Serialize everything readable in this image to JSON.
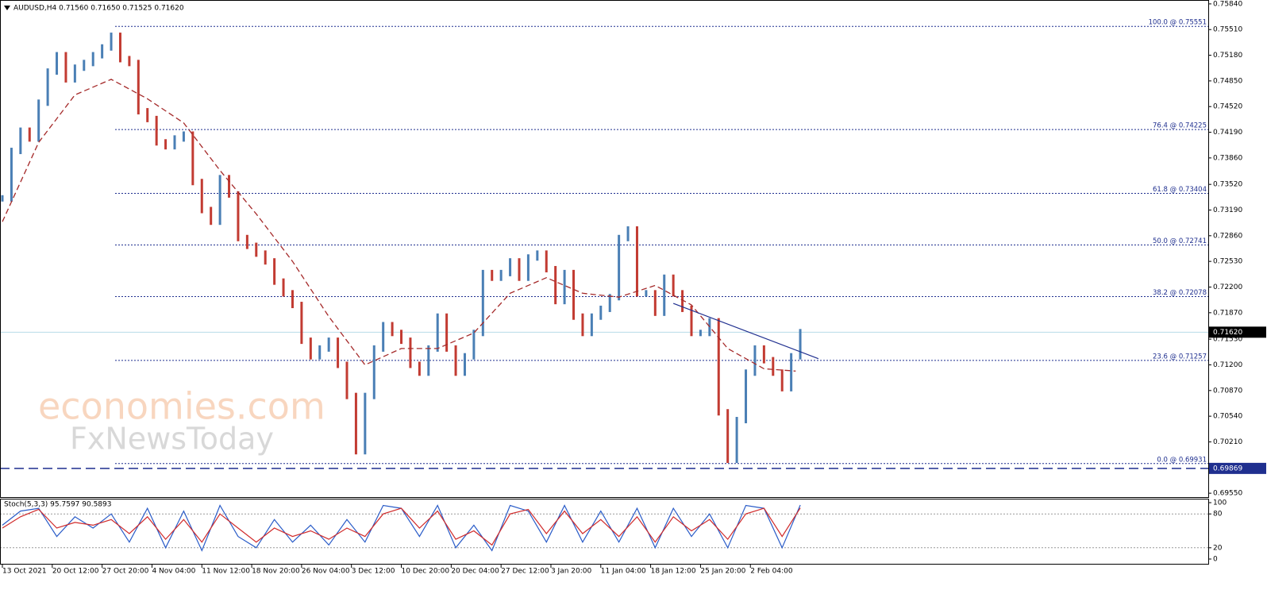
{
  "chart_data": [
    {
      "type": "ohlc",
      "title": "AUDUSD,H4  0.71560 0.71650 0.71525 0.71620",
      "x": [
        0,
        8,
        16,
        24,
        32,
        40,
        48,
        56,
        64,
        72,
        80,
        88,
        96,
        104,
        112,
        120,
        128,
        136,
        144,
        152,
        160,
        168,
        176,
        184,
        192,
        200,
        208,
        216,
        224,
        232,
        240,
        248,
        256,
        264,
        272,
        280,
        288,
        296,
        304,
        312,
        320,
        328,
        336,
        344,
        352,
        360,
        368,
        376,
        384,
        392,
        400,
        408,
        416,
        424,
        432,
        440,
        448,
        456,
        464,
        472,
        480,
        488,
        496,
        504,
        512,
        520,
        528,
        536,
        544,
        552,
        560,
        568,
        576,
        584,
        592,
        600,
        608,
        616,
        624,
        632,
        640,
        648,
        656,
        664,
        672,
        680,
        688,
        696,
        704
      ],
      "values": [
        0.7334,
        0.7395,
        0.7421,
        0.7411,
        0.7457,
        0.7497,
        0.7518,
        0.7487,
        0.7502,
        0.7508,
        0.7518,
        0.7528,
        0.7543,
        0.7513,
        0.7508,
        0.7446,
        0.7436,
        0.7406,
        0.7401,
        0.7411,
        0.7416,
        0.7355,
        0.7319,
        0.7304,
        0.736,
        0.7339,
        0.7283,
        0.7273,
        0.7263,
        0.7253,
        0.7227,
        0.7212,
        0.7197,
        0.7151,
        0.7131,
        0.7141,
        0.7151,
        0.712,
        0.708,
        0.7009,
        0.708,
        0.7141,
        0.7171,
        0.7161,
        0.7151,
        0.712,
        0.711,
        0.7141,
        0.7182,
        0.7141,
        0.711,
        0.7131,
        0.7161,
        0.7238,
        0.7232,
        0.7238,
        0.7253,
        0.7232,
        0.7258,
        0.7263,
        0.7243,
        0.7202,
        0.7238,
        0.7182,
        0.7161,
        0.7182,
        0.7192,
        0.7207,
        0.7283,
        0.7294,
        0.7212,
        0.7212,
        0.7187,
        0.7232,
        0.7212,
        0.7192,
        0.7161,
        0.7161,
        0.7176,
        0.7059,
        0.6998,
        0.7049,
        0.711,
        0.7141,
        0.7126,
        0.711,
        0.709,
        0.7131,
        0.7162
      ],
      "up_color": "#4a7fb5",
      "down_color": "#c23b32",
      "overlays": [
        {
          "type": "line",
          "dashed": true,
          "color": "#a52a2a",
          "x": [
            0,
            32,
            64,
            96,
            128,
            160,
            192,
            224,
            256,
            288,
            320,
            352,
            384,
            416,
            448,
            480,
            512,
            544,
            576,
            608,
            640,
            672,
            700
          ],
          "values": [
            0.7304,
            0.7406,
            0.7467,
            0.7487,
            0.7462,
            0.7431,
            0.737,
            0.7314,
            0.7253,
            0.7182,
            0.712,
            0.7141,
            0.7141,
            0.7161,
            0.7212,
            0.7232,
            0.7212,
            0.7207,
            0.7222,
            0.7197,
            0.7141,
            0.7115,
            0.7112
          ]
        }
      ],
      "xlim": [
        0,
        1064
      ],
      "xticks": [
        {
          "value": 0,
          "label": "13 Oct 2021"
        },
        {
          "value": 44,
          "label": "20 Oct 12:00"
        },
        {
          "value": 88,
          "label": "27 Oct 20:00"
        },
        {
          "value": 132,
          "label": "4 Nov 04:00"
        },
        {
          "value": 176,
          "label": "11 Nov 12:00"
        },
        {
          "value": 220,
          "label": "18 Nov 20:00"
        },
        {
          "value": 264,
          "label": "26 Nov 04:00"
        },
        {
          "value": 308,
          "label": "3 Dec 12:00"
        },
        {
          "value": 352,
          "label": "10 Dec 20:00"
        },
        {
          "value": 396,
          "label": "20 Dec 04:00"
        },
        {
          "value": 440,
          "label": "27 Dec 12:00"
        },
        {
          "value": 484,
          "label": "3 Jan 20:00"
        },
        {
          "value": 528,
          "label": "11 Jan 04:00"
        },
        {
          "value": 572,
          "label": "18 Jan 12:00"
        },
        {
          "value": 616,
          "label": "25 Jan 20:00"
        },
        {
          "value": 660,
          "label": "2 Feb 04:00"
        }
      ],
      "ylim": [
        0.6949,
        0.7589
      ],
      "yticks": [
        {
          "value": 0.7584,
          "label": "0.75840"
        },
        {
          "value": 0.7551,
          "label": "0.75510"
        },
        {
          "value": 0.7518,
          "label": "0.75180"
        },
        {
          "value": 0.7485,
          "label": "0.74850"
        },
        {
          "value": 0.7452,
          "label": "0.74520"
        },
        {
          "value": 0.7419,
          "label": "0.74190"
        },
        {
          "value": 0.7386,
          "label": "0.73860"
        },
        {
          "value": 0.7352,
          "label": "0.73520"
        },
        {
          "value": 0.7319,
          "label": "0.73190"
        },
        {
          "value": 0.7286,
          "label": "0.72860"
        },
        {
          "value": 0.7253,
          "label": "0.72530"
        },
        {
          "value": 0.722,
          "label": "0.72200"
        },
        {
          "value": 0.7187,
          "label": "0.71870"
        },
        {
          "value": 0.7153,
          "label": "0.71530"
        },
        {
          "value": 0.712,
          "label": "0.71200"
        },
        {
          "value": 0.7087,
          "label": "0.70870"
        },
        {
          "value": 0.7054,
          "label": "0.70540"
        },
        {
          "value": 0.7021,
          "label": "0.70210"
        },
        {
          "value": 0.6955,
          "label": "0.69550"
        }
      ],
      "levels": [
        {
          "value": 0.75551,
          "label": "100.0 @ 0.75551"
        },
        {
          "value": 0.74225,
          "label": "76.4 @ 0.74225"
        },
        {
          "value": 0.73404,
          "label": "61.8 @ 0.73404"
        },
        {
          "value": 0.72741,
          "label": "50.0 @ 0.72741"
        },
        {
          "value": 0.72078,
          "label": "38.2 @ 0.72078"
        },
        {
          "value": 0.71257,
          "label": "23.6 @ 0.71257"
        },
        {
          "value": 0.69931,
          "label": "0.0 @ 0.69931"
        }
      ],
      "level_color": "#1f2f8f",
      "price_lines": [
        {
          "value": 0.7162,
          "label": "0.71620",
          "color": "#b7dbe8",
          "box": "#000000",
          "dashed": false
        },
        {
          "value": 0.69869,
          "label": "0.69869",
          "color": "#1f2f8f",
          "box": "#1f2f8f",
          "dashed": true
        }
      ],
      "trendline": {
        "x": [
          592,
          720
        ],
        "values": [
          0.7199,
          0.7128
        ],
        "color": "#1f2f8f"
      }
    },
    {
      "type": "line",
      "title": "Stoch(5,3,3) 95.7597 90.5893",
      "series": [
        {
          "color": "#2a5cc8",
          "x": [
            0,
            16,
            32,
            48,
            64,
            80,
            96,
            112,
            128,
            144,
            160,
            176,
            192,
            208,
            224,
            240,
            256,
            272,
            288,
            304,
            320,
            336,
            352,
            368,
            384,
            400,
            416,
            432,
            448,
            464,
            480,
            496,
            512,
            528,
            544,
            560,
            576,
            592,
            608,
            624,
            640,
            656,
            672,
            688,
            704
          ],
          "values": [
            60,
            85,
            90,
            40,
            75,
            55,
            80,
            30,
            90,
            20,
            85,
            15,
            95,
            40,
            20,
            70,
            30,
            60,
            25,
            70,
            30,
            95,
            90,
            40,
            95,
            20,
            60,
            15,
            95,
            85,
            30,
            95,
            30,
            85,
            30,
            90,
            20,
            90,
            40,
            80,
            20,
            95,
            90,
            20,
            95.7597
          ]
        },
        {
          "color": "#d02a2a",
          "x": [
            0,
            16,
            32,
            48,
            64,
            80,
            96,
            112,
            128,
            144,
            160,
            176,
            192,
            208,
            224,
            240,
            256,
            272,
            288,
            304,
            320,
            336,
            352,
            368,
            384,
            400,
            416,
            432,
            448,
            464,
            480,
            496,
            512,
            528,
            544,
            560,
            576,
            592,
            608,
            624,
            640,
            656,
            672,
            688,
            704
          ],
          "values": [
            55,
            75,
            88,
            55,
            65,
            60,
            70,
            45,
            75,
            35,
            70,
            30,
            80,
            55,
            30,
            55,
            40,
            50,
            35,
            55,
            40,
            80,
            90,
            55,
            85,
            35,
            50,
            25,
            80,
            88,
            45,
            85,
            45,
            70,
            40,
            75,
            30,
            75,
            50,
            70,
            35,
            80,
            90,
            40,
            90.5893
          ]
        }
      ],
      "xlim": [
        0,
        1064
      ],
      "ylim": [
        0,
        100
      ],
      "yticks": [
        100,
        80,
        20,
        0
      ]
    }
  ],
  "watermark": {
    "line1": "economies.com",
    "line2": "FxNewsToday"
  }
}
